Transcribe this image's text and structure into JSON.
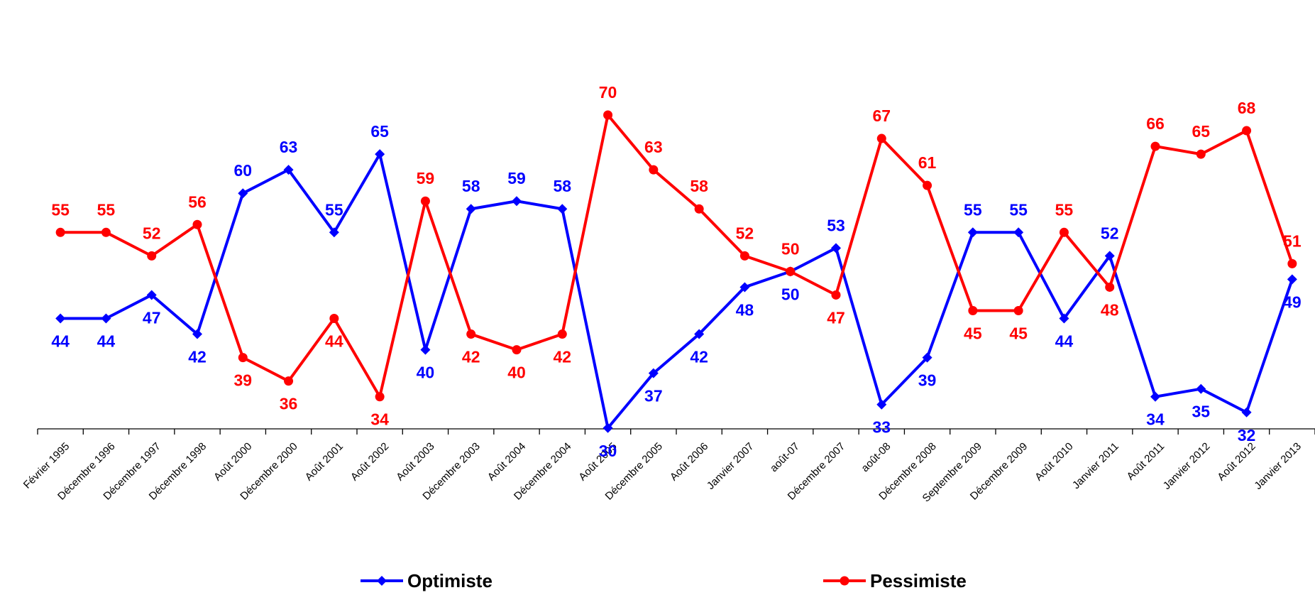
{
  "colors": {
    "optimiste": "#0000FF",
    "pessimiste": "#FF0000",
    "axis": "#000000"
  },
  "legend": {
    "optimiste": "Optimiste",
    "pessimiste": "Pessimiste"
  },
  "chart_data": {
    "type": "line",
    "title": "",
    "xlabel": "",
    "ylabel": "",
    "ylim": [
      10,
      75
    ],
    "grid": false,
    "legend_position": "bottom",
    "categories": [
      "Février 1995",
      "Décembre 1996",
      "Décembre 1997",
      "Décembre 1998",
      "Août 2000",
      "Décembre 2000",
      "Août 2001",
      "Août 2002",
      "Août 2003",
      "Décembre 2003",
      "Août 2004",
      "Décembre 2004",
      "Août 2005",
      "Décembre 2005",
      "Août 2006",
      "Janvier 2007",
      "août-07",
      "Décembre 2007",
      "août-08",
      "Décembre 2008",
      "Septembre 2009",
      "Décembre 2009",
      "Août 2010",
      "Janvier 2011",
      "Août 2011",
      "Janvier 2012",
      "Août 2012",
      "Janvier 2013"
    ],
    "series": [
      {
        "name": "Optimiste",
        "color": "#0000FF",
        "marker": "diamond",
        "values": [
          44,
          44,
          47,
          42,
          60,
          63,
          55,
          65,
          40,
          58,
          59,
          58,
          30,
          37,
          42,
          48,
          50,
          53,
          33,
          39,
          55,
          55,
          44,
          52,
          34,
          35,
          32,
          49
        ]
      },
      {
        "name": "Pessimiste",
        "color": "#FF0000",
        "marker": "circle",
        "values": [
          55,
          55,
          52,
          56,
          39,
          36,
          44,
          34,
          59,
          42,
          40,
          42,
          70,
          63,
          58,
          52,
          50,
          47,
          67,
          61,
          45,
          45,
          55,
          48,
          66,
          65,
          68,
          51
        ]
      }
    ]
  }
}
